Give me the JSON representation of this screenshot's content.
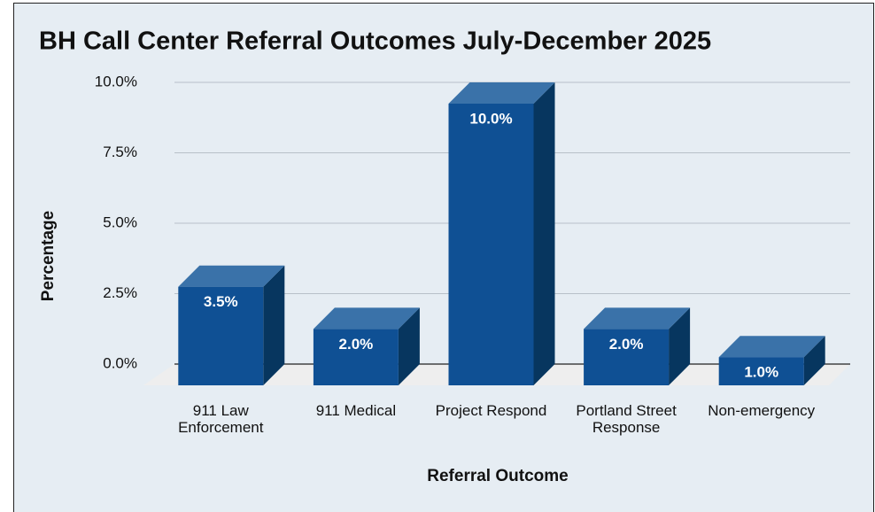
{
  "chart_data": {
    "type": "bar3d",
    "title": "BH Call Center Referral Outcomes July-December 2025",
    "x_label": "Referral Outcome",
    "y_label": "Percentage",
    "categories": [
      "911 Law Enforcement",
      "911 Medical",
      "Project Respond",
      "Portland Street Response",
      "Non-emergency"
    ],
    "values": [
      3.5,
      2.0,
      10.0,
      2.0,
      1.0
    ],
    "value_labels": [
      "3.5%",
      "2.0%",
      "10.0%",
      "2.0%",
      "1.0%"
    ],
    "color": "#0f5094",
    "ylim": [
      0,
      10
    ],
    "yticks": [
      {
        "value": 0,
        "label": "0.0%"
      },
      {
        "value": 2.5,
        "label": "2.5%"
      },
      {
        "value": 5,
        "label": "5.0%"
      },
      {
        "value": 7.5,
        "label": "7.5%"
      },
      {
        "value": 10,
        "label": "10.0%"
      }
    ],
    "grid": true
  }
}
